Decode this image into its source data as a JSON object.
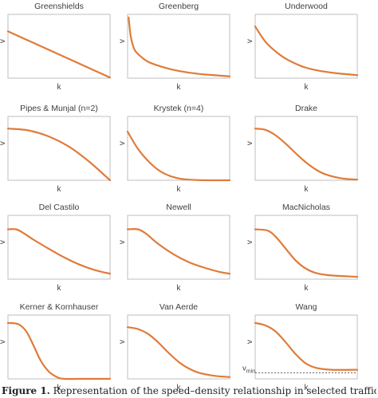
{
  "chart_data": [
    {
      "type": "line",
      "title": "Greenshields",
      "xlabel": "k",
      "ylabel": "v",
      "xlim": [
        0,
        1
      ],
      "ylim": [
        0,
        1.05
      ],
      "series": [
        {
          "x": [
            0,
            0.25,
            0.5,
            0.75,
            1
          ],
          "y": [
            0.77,
            0.58,
            0.39,
            0.2,
            0.01
          ]
        }
      ]
    },
    {
      "type": "line",
      "title": "Greenberg",
      "xlabel": "k",
      "ylabel": "v",
      "xlim": [
        0,
        1
      ],
      "ylim": [
        0,
        1.05
      ],
      "series": [
        {
          "x": [
            0.01,
            0.03,
            0.06,
            0.1,
            0.2,
            0.35,
            0.5,
            0.7,
            1
          ],
          "y": [
            1.0,
            0.7,
            0.5,
            0.4,
            0.27,
            0.18,
            0.12,
            0.07,
            0.03
          ]
        }
      ]
    },
    {
      "type": "line",
      "title": "Underwood",
      "xlabel": "k",
      "ylabel": "v",
      "xlim": [
        0,
        1
      ],
      "ylim": [
        0,
        1.05
      ],
      "series": [
        {
          "x": [
            0,
            0.1,
            0.2,
            0.3,
            0.45,
            0.6,
            0.8,
            1
          ],
          "y": [
            0.85,
            0.6,
            0.44,
            0.32,
            0.2,
            0.13,
            0.08,
            0.05
          ]
        }
      ]
    },
    {
      "type": "line",
      "title": "Pipes & Munjal (n=2)",
      "xlabel": "k",
      "ylabel": "v",
      "xlim": [
        0,
        1
      ],
      "ylim": [
        0,
        1.05
      ],
      "series": [
        {
          "x": [
            0,
            0.2,
            0.4,
            0.6,
            0.8,
            1
          ],
          "y": [
            0.85,
            0.82,
            0.72,
            0.55,
            0.3,
            0.0
          ]
        }
      ]
    },
    {
      "type": "line",
      "title": "Krystek (n=4)",
      "xlabel": "k",
      "ylabel": "v",
      "xlim": [
        0,
        1
      ],
      "ylim": [
        0,
        1.05
      ],
      "series": [
        {
          "x": [
            0,
            0.1,
            0.2,
            0.3,
            0.4,
            0.5,
            0.6,
            0.75,
            1
          ],
          "y": [
            0.8,
            0.52,
            0.32,
            0.17,
            0.08,
            0.03,
            0.01,
            0.0,
            0.0
          ]
        }
      ]
    },
    {
      "type": "line",
      "title": "Drake",
      "xlabel": "k",
      "ylabel": "v",
      "xlim": [
        0,
        1
      ],
      "ylim": [
        0,
        1.05
      ],
      "series": [
        {
          "x": [
            0,
            0.1,
            0.2,
            0.3,
            0.4,
            0.5,
            0.6,
            0.7,
            0.85,
            1
          ],
          "y": [
            0.85,
            0.83,
            0.74,
            0.6,
            0.44,
            0.29,
            0.17,
            0.09,
            0.03,
            0.01
          ]
        }
      ]
    },
    {
      "type": "line",
      "title": "Del Castilo",
      "xlabel": "k",
      "ylabel": "v",
      "xlim": [
        0,
        1
      ],
      "ylim": [
        0,
        1.05
      ],
      "series": [
        {
          "x": [
            0,
            0.08,
            0.15,
            0.25,
            0.4,
            0.55,
            0.7,
            0.85,
            1
          ],
          "y": [
            0.82,
            0.82,
            0.76,
            0.65,
            0.5,
            0.36,
            0.24,
            0.15,
            0.09
          ]
        }
      ]
    },
    {
      "type": "line",
      "title": "Newell",
      "xlabel": "k",
      "ylabel": "v",
      "xlim": [
        0,
        1
      ],
      "ylim": [
        0,
        1.05
      ],
      "series": [
        {
          "x": [
            0,
            0.1,
            0.18,
            0.3,
            0.45,
            0.6,
            0.75,
            0.9,
            1
          ],
          "y": [
            0.82,
            0.82,
            0.75,
            0.58,
            0.41,
            0.28,
            0.19,
            0.12,
            0.09
          ]
        }
      ]
    },
    {
      "type": "line",
      "title": "MacNicholas",
      "xlabel": "k",
      "ylabel": "v",
      "xlim": [
        0,
        1
      ],
      "ylim": [
        0,
        1.05
      ],
      "series": [
        {
          "x": [
            0,
            0.12,
            0.2,
            0.3,
            0.4,
            0.5,
            0.6,
            0.75,
            1
          ],
          "y": [
            0.82,
            0.8,
            0.7,
            0.5,
            0.3,
            0.17,
            0.1,
            0.06,
            0.04
          ]
        }
      ]
    },
    {
      "type": "line",
      "title": "Kerner & Kornhauser",
      "xlabel": "k",
      "ylabel": "v",
      "xlim": [
        0,
        1
      ],
      "ylim": [
        0,
        1.05
      ],
      "series": [
        {
          "x": [
            0,
            0.1,
            0.18,
            0.25,
            0.32,
            0.4,
            0.48,
            0.55,
            0.7,
            1
          ],
          "y": [
            0.92,
            0.9,
            0.78,
            0.55,
            0.3,
            0.12,
            0.03,
            0.0,
            0.0,
            0.0
          ]
        }
      ]
    },
    {
      "type": "line",
      "title": "Van Aerde",
      "xlabel": "k",
      "ylabel": "v",
      "xlim": [
        0,
        1
      ],
      "ylim": [
        0,
        1.05
      ],
      "series": [
        {
          "x": [
            0,
            0.1,
            0.2,
            0.3,
            0.4,
            0.5,
            0.6,
            0.7,
            0.85,
            1
          ],
          "y": [
            0.85,
            0.82,
            0.74,
            0.6,
            0.43,
            0.28,
            0.17,
            0.1,
            0.05,
            0.03
          ]
        }
      ]
    },
    {
      "type": "line",
      "title": "Wang",
      "xlabel": "k",
      "ylabel": "v",
      "xlim": [
        0,
        1
      ],
      "ylim": [
        0,
        1.05
      ],
      "annotation": "v",
      "annotation_sub": "min",
      "vmin": 0.1,
      "series": [
        {
          "x": [
            0,
            0.1,
            0.2,
            0.3,
            0.4,
            0.5,
            0.6,
            0.75,
            1
          ],
          "y": [
            0.92,
            0.88,
            0.78,
            0.6,
            0.4,
            0.25,
            0.18,
            0.15,
            0.15
          ]
        }
      ]
    }
  ],
  "caption": {
    "label": "Figure 1.",
    "text": " Representation of the speed–density relationship in selected traffic"
  }
}
